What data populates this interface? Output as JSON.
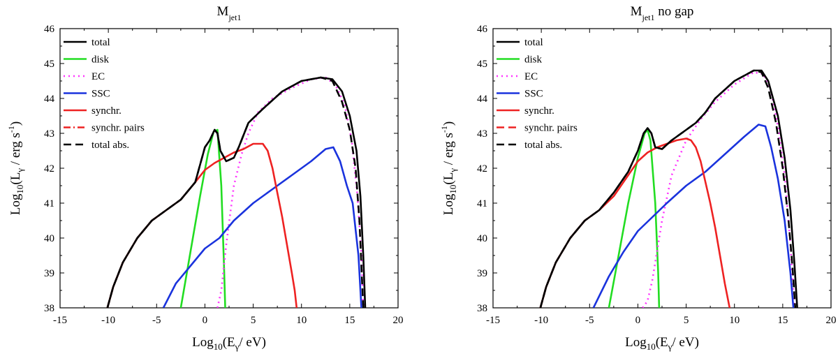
{
  "chart_data": [
    {
      "type": "line",
      "title": "M",
      "title_sub": "jet1",
      "title_suffix": "",
      "xlabel": {
        "prefix": "Log",
        "sub": "10",
        "mid": "(E",
        "gsub": "γ",
        "end": "/ eV)"
      },
      "ylabel": {
        "prefix": "Log",
        "sub": "10",
        "mid": "(L",
        "gsub": "γ",
        "end": " / erg s",
        "sup": "-1",
        "close": ")"
      },
      "xlim": [
        -15,
        20
      ],
      "ylim": [
        38,
        46
      ],
      "xticks": [
        "-15",
        "-10",
        "-5",
        "0",
        "5",
        "10",
        "15",
        "20"
      ],
      "yticks": [
        "38",
        "39",
        "40",
        "41",
        "42",
        "43",
        "44",
        "45",
        "46"
      ],
      "legend_position": "top-left",
      "series": [
        {
          "name": "total",
          "color": "#000000",
          "style": "solid",
          "x": [
            -10.1,
            -9.5,
            -8.5,
            -7,
            -5.5,
            -4,
            -2.5,
            -1,
            0,
            0.5,
            1,
            1.3,
            1.6,
            2.2,
            3,
            3.5,
            4.5,
            6,
            8,
            10,
            12,
            13.2,
            14.2,
            15,
            15.7,
            16.1,
            16.4,
            16.6
          ],
          "y": [
            38,
            38.6,
            39.3,
            40,
            40.5,
            40.8,
            41.1,
            41.6,
            42.6,
            42.8,
            43.1,
            43,
            42.5,
            42.2,
            42.3,
            42.6,
            43.3,
            43.7,
            44.2,
            44.5,
            44.6,
            44.55,
            44.2,
            43.5,
            42.5,
            41.2,
            39.5,
            38
          ]
        },
        {
          "name": "disk",
          "color": "#22dd22",
          "style": "solid",
          "x": [
            -2.5,
            -1.5,
            -0.5,
            0.3,
            0.9,
            1.3,
            1.7,
            2,
            2.1
          ],
          "y": [
            38,
            39.6,
            41.2,
            42.4,
            43.05,
            43.1,
            41.5,
            39,
            38
          ]
        },
        {
          "name": "EC",
          "color": "#ff33ff",
          "style": "dot",
          "x": [
            1.3,
            1.7,
            2.2,
            3,
            3.8,
            4.5,
            5.5,
            7,
            9,
            11,
            12.5,
            13.5,
            14.5,
            15.2,
            15.8,
            16.2,
            16.4
          ],
          "y": [
            38,
            38.5,
            39.8,
            41.5,
            42.4,
            43,
            43.6,
            44,
            44.3,
            44.55,
            44.6,
            44.4,
            43.8,
            42.8,
            41.2,
            39.5,
            38
          ]
        },
        {
          "name": "SSC",
          "color": "#1a33dd",
          "style": "solid",
          "x": [
            -4.3,
            -3,
            -1.5,
            0,
            1.5,
            3,
            5,
            7,
            9,
            11,
            12.5,
            13.3,
            14,
            14.7,
            15.3,
            15.9,
            16.2
          ],
          "y": [
            38,
            38.7,
            39.2,
            39.7,
            40,
            40.5,
            41,
            41.4,
            41.8,
            42.2,
            42.55,
            42.6,
            42.2,
            41.5,
            41,
            39.5,
            38
          ]
        },
        {
          "name": "synchr.",
          "color": "#ee2222",
          "style": "solid",
          "x": [
            -10.1,
            -9.5,
            -8.5,
            -7,
            -5.5,
            -4,
            -2.5,
            -1,
            0,
            1,
            2,
            3,
            4,
            5,
            6,
            6.5,
            7,
            7.5,
            8,
            8.5,
            9,
            9.3,
            9.5
          ],
          "y": [
            38,
            38.6,
            39.3,
            40,
            40.5,
            40.8,
            41.1,
            41.6,
            41.95,
            42.15,
            42.3,
            42.45,
            42.55,
            42.7,
            42.7,
            42.5,
            42,
            41.3,
            40.6,
            39.8,
            39,
            38.5,
            38
          ]
        },
        {
          "name": "synchr. pairs",
          "color": "#ee2222",
          "style": "dashdot",
          "x": [
            -10.1,
            -9.5,
            -8.5,
            -7,
            -5.5,
            -4.5
          ],
          "y": [
            38,
            38.6,
            39.3,
            40,
            40.5,
            40.7
          ]
        },
        {
          "name": "total abs.",
          "color": "#000000",
          "style": "dash",
          "x": [
            -10.1,
            -9.5,
            -8.5,
            -7,
            -5.5,
            -4,
            -2.5,
            -1,
            0,
            0.5,
            1,
            1.3,
            1.6,
            2.2,
            3,
            3.5,
            4.5,
            6,
            8,
            10,
            12,
            13.2,
            14.2,
            15,
            15.6,
            16,
            16.2,
            16.4
          ],
          "y": [
            38,
            38.6,
            39.3,
            40,
            40.5,
            40.8,
            41.1,
            41.6,
            42.6,
            42.8,
            43.1,
            43,
            42.5,
            42.2,
            42.3,
            42.6,
            43.3,
            43.7,
            44.2,
            44.5,
            44.6,
            44.5,
            43.9,
            43.1,
            42,
            40.5,
            39.2,
            38
          ]
        }
      ]
    },
    {
      "type": "line",
      "title": "M",
      "title_sub": "jet1",
      "title_suffix": " no gap",
      "xlabel": {
        "prefix": "Log",
        "sub": "10",
        "mid": "(E",
        "gsub": "γ",
        "end": "/ eV)"
      },
      "ylabel": {
        "prefix": "Log",
        "sub": "10",
        "mid": "(L",
        "gsub": "γ",
        "end": " / erg s",
        "sup": "-1",
        "close": ")"
      },
      "xlim": [
        -15,
        20
      ],
      "ylim": [
        38,
        46
      ],
      "xticks": [
        "-15",
        "-10",
        "-5",
        "0",
        "5",
        "10",
        "15",
        "20"
      ],
      "yticks": [
        "38",
        "39",
        "40",
        "41",
        "42",
        "43",
        "44",
        "45",
        "46"
      ],
      "legend_position": "top-left",
      "series": [
        {
          "name": "total",
          "color": "#000000",
          "style": "solid",
          "x": [
            -10.1,
            -9.5,
            -8.5,
            -7,
            -5.5,
            -4,
            -2.5,
            -1,
            0,
            0.6,
            1,
            1.4,
            1.8,
            2.5,
            3.5,
            5,
            6,
            7,
            8,
            10,
            12,
            12.8,
            13.5,
            14.5,
            15.2,
            15.8,
            16.2,
            16.5
          ],
          "y": [
            38,
            38.6,
            39.3,
            40,
            40.5,
            40.8,
            41.3,
            41.9,
            42.5,
            43,
            43.15,
            43,
            42.6,
            42.55,
            42.8,
            43.1,
            43.3,
            43.6,
            44,
            44.5,
            44.8,
            44.8,
            44.5,
            43.5,
            42.3,
            40.8,
            39.3,
            38
          ]
        },
        {
          "name": "disk",
          "color": "#22dd22",
          "style": "solid",
          "x": [
            -3,
            -2,
            -1,
            0,
            0.7,
            1,
            1.3,
            1.8,
            2.1,
            2.2
          ],
          "y": [
            38,
            39.5,
            41,
            42.3,
            43,
            43.1,
            42.8,
            41,
            39,
            38
          ]
        },
        {
          "name": "EC",
          "color": "#ff33ff",
          "style": "dot",
          "x": [
            0.5,
            1,
            1.5,
            2.5,
            3.5,
            5,
            6.5,
            8,
            10,
            12,
            13,
            13.8,
            14.5,
            15.2,
            15.8,
            16.2
          ],
          "y": [
            38,
            38.2,
            38.8,
            40.5,
            41.8,
            42.8,
            43.4,
            43.9,
            44.4,
            44.75,
            44.7,
            44.2,
            43.2,
            41.8,
            39.8,
            38
          ]
        },
        {
          "name": "SSC",
          "color": "#1a33dd",
          "style": "solid",
          "x": [
            -4.6,
            -3,
            -1.5,
            0,
            1.5,
            3,
            5,
            7,
            9,
            11,
            12.5,
            13.2,
            13.8,
            14.5,
            15.2,
            15.8,
            16.1
          ],
          "y": [
            38,
            38.9,
            39.6,
            40.2,
            40.6,
            41,
            41.5,
            41.9,
            42.4,
            42.9,
            43.25,
            43.2,
            42.6,
            41.7,
            40.5,
            39,
            38
          ]
        },
        {
          "name": "synchr.",
          "color": "#ee2222",
          "style": "solid",
          "x": [
            -10.1,
            -9.5,
            -8.5,
            -7,
            -5.5,
            -4,
            -2.5,
            -1,
            0,
            1,
            2,
            3,
            4,
            5,
            5.5,
            6,
            6.5,
            7,
            7.5,
            8,
            8.5,
            9,
            9.5
          ],
          "y": [
            38,
            38.6,
            39.3,
            40,
            40.5,
            40.8,
            41.2,
            41.8,
            42.2,
            42.45,
            42.6,
            42.7,
            42.8,
            42.85,
            42.8,
            42.6,
            42.2,
            41.6,
            41,
            40.3,
            39.5,
            38.7,
            38
          ]
        },
        {
          "name": "synchr. pairs",
          "color": "#ee2222",
          "style": "dash",
          "x": [
            -10.1,
            -9.5,
            -8.5,
            -7,
            -5.5,
            -4.5
          ],
          "y": [
            38,
            38.6,
            39.3,
            40,
            40.5,
            40.7
          ]
        },
        {
          "name": "total abs.",
          "color": "#000000",
          "style": "dash",
          "x": [
            -10.1,
            -9.5,
            -8.5,
            -7,
            -5.5,
            -4,
            -2.5,
            -1,
            0,
            0.6,
            1,
            1.4,
            1.8,
            2.5,
            3.5,
            5,
            6,
            7,
            8,
            10,
            12,
            12.8,
            13.5,
            14.3,
            15,
            15.6,
            16,
            16.3
          ],
          "y": [
            38,
            38.6,
            39.3,
            40,
            40.5,
            40.8,
            41.3,
            41.9,
            42.5,
            43,
            43.15,
            43,
            42.6,
            42.55,
            42.8,
            43.1,
            43.3,
            43.6,
            44,
            44.5,
            44.8,
            44.75,
            44.3,
            43.3,
            42,
            40.5,
            39.2,
            38
          ]
        }
      ]
    }
  ]
}
